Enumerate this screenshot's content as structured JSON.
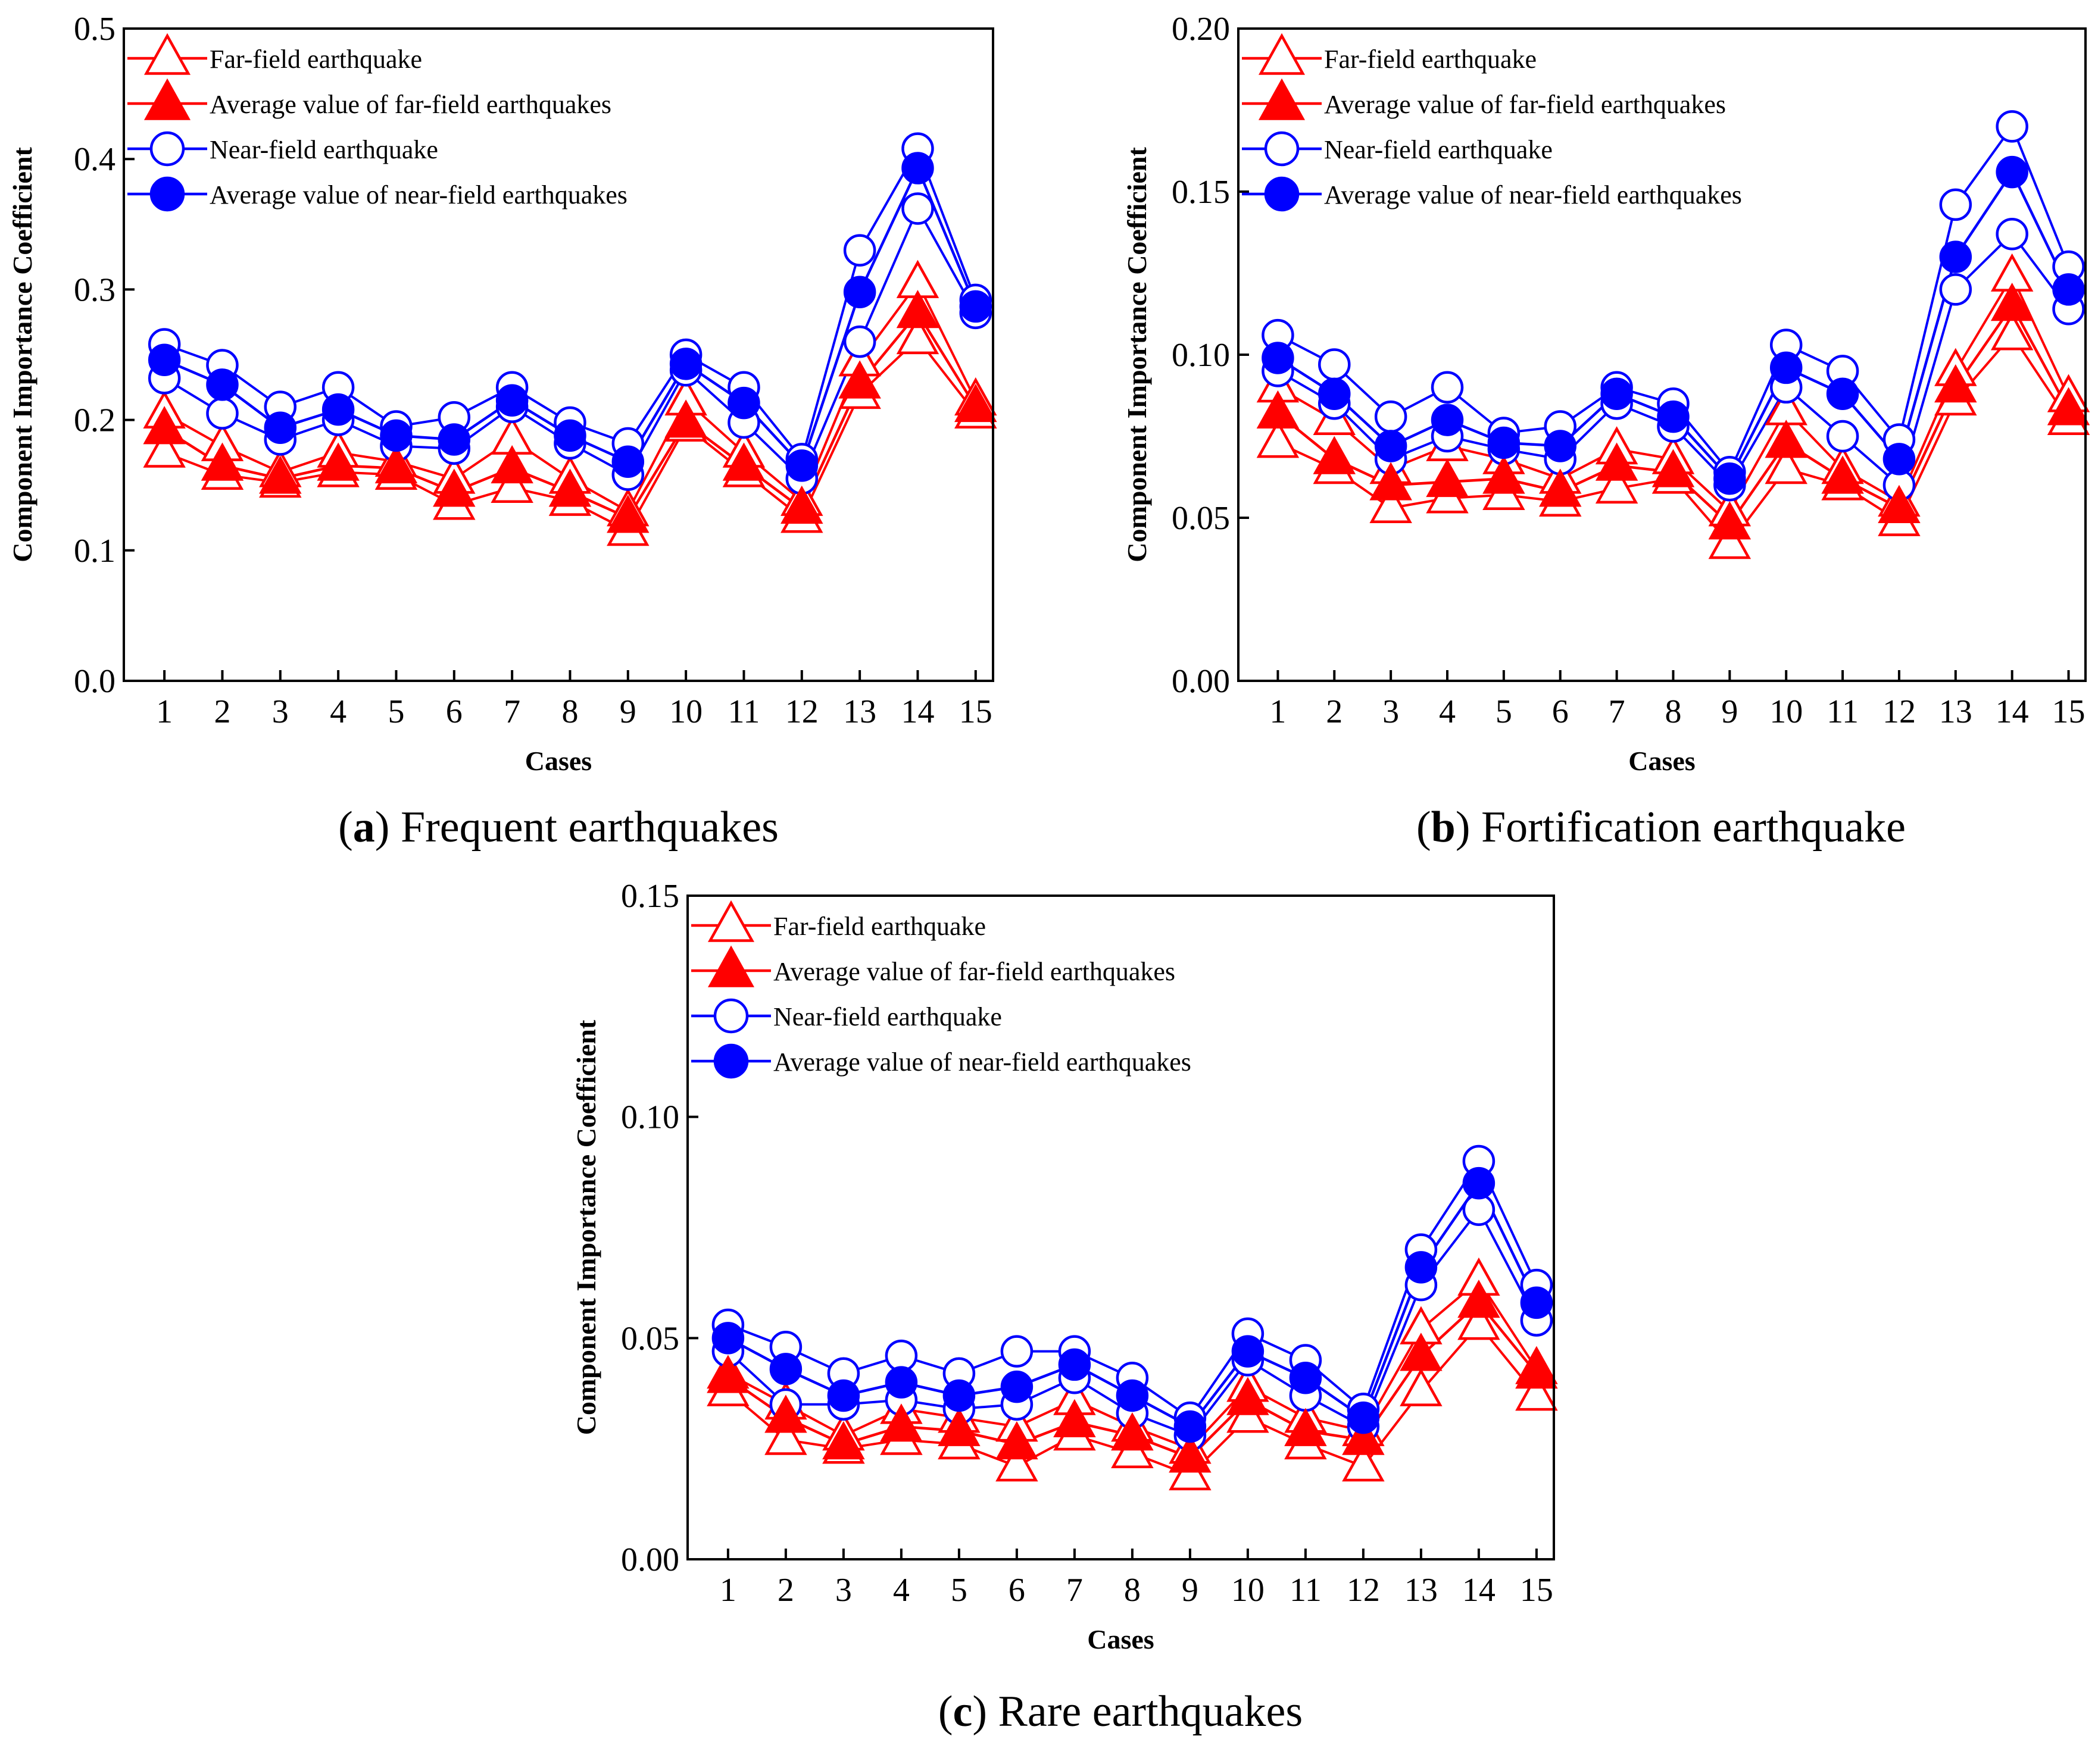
{
  "legend": [
    {
      "key": "far_ind",
      "label": "Far-field earthquake",
      "color": "#ff0000",
      "marker": "triangle-open"
    },
    {
      "key": "far_avg",
      "label": "Average value of far-field earthquakes",
      "color": "#ff0000",
      "marker": "triangle-filled"
    },
    {
      "key": "near_ind",
      "label": "Near-field earthquake",
      "color": "#0000ff",
      "marker": "circle-open"
    },
    {
      "key": "near_avg",
      "label": "Average value of near-field earthquakes",
      "color": "#0000ff",
      "marker": "circle-filled"
    }
  ],
  "chart_data": [
    {
      "type": "line",
      "caption_letter": "a",
      "caption_text": " Frequent earthquakes",
      "xlabel": "Cases",
      "ylabel": "Component Importance Coefficient",
      "x": [
        1,
        2,
        3,
        4,
        5,
        6,
        7,
        8,
        9,
        10,
        11,
        12,
        13,
        14,
        15
      ],
      "xlim": [
        0.3,
        15.3
      ],
      "ylim": [
        0,
        0.5
      ],
      "yticks": [
        "0.0",
        "0.1",
        "0.2",
        "0.3",
        "0.4",
        "0.5"
      ],
      "ytick_values": [
        0,
        0.1,
        0.2,
        0.3,
        0.4,
        0.5
      ],
      "grid": false,
      "legend_position": "top-left",
      "far_individual": [
        [
          0.175,
          0.158,
          0.152,
          0.16,
          0.158,
          0.135,
          0.148,
          0.138,
          0.115,
          0.195,
          0.16,
          0.125,
          0.22,
          0.262,
          0.205
        ],
        [
          0.205,
          0.18,
          0.16,
          0.175,
          0.168,
          0.155,
          0.185,
          0.155,
          0.13,
          0.215,
          0.175,
          0.138,
          0.245,
          0.305,
          0.215
        ]
      ],
      "far_average": [
        0.193,
        0.165,
        0.155,
        0.165,
        0.163,
        0.145,
        0.163,
        0.145,
        0.125,
        0.198,
        0.165,
        0.132,
        0.228,
        0.282,
        0.21
      ],
      "near_individual": [
        [
          0.232,
          0.205,
          0.185,
          0.2,
          0.18,
          0.178,
          0.21,
          0.182,
          0.158,
          0.238,
          0.198,
          0.155,
          0.26,
          0.362,
          0.282
        ],
        [
          0.258,
          0.242,
          0.21,
          0.225,
          0.195,
          0.202,
          0.225,
          0.198,
          0.182,
          0.25,
          0.225,
          0.17,
          0.33,
          0.408,
          0.292
        ]
      ],
      "near_average": [
        0.246,
        0.227,
        0.194,
        0.208,
        0.188,
        0.185,
        0.215,
        0.188,
        0.168,
        0.243,
        0.213,
        0.165,
        0.298,
        0.393,
        0.287
      ]
    },
    {
      "type": "line",
      "caption_letter": "b",
      "caption_text": " Fortification earthquake",
      "xlabel": "Cases",
      "ylabel": "Component Importance Coefficient",
      "x": [
        1,
        2,
        3,
        4,
        5,
        6,
        7,
        8,
        9,
        10,
        11,
        12,
        13,
        14,
        15
      ],
      "xlim": [
        0.3,
        15.3
      ],
      "ylim": [
        0,
        0.2
      ],
      "yticks": [
        "0.00",
        "0.05",
        "0.10",
        "0.15",
        "0.20"
      ],
      "ytick_values": [
        0,
        0.05,
        0.1,
        0.15,
        0.2
      ],
      "grid": false,
      "legend_position": "top-left",
      "far_individual": [
        [
          0.073,
          0.065,
          0.053,
          0.056,
          0.057,
          0.055,
          0.059,
          0.062,
          0.042,
          0.065,
          0.06,
          0.049,
          0.086,
          0.106,
          0.08
        ],
        [
          0.09,
          0.08,
          0.065,
          0.072,
          0.068,
          0.062,
          0.071,
          0.068,
          0.052,
          0.083,
          0.065,
          0.055,
          0.095,
          0.124,
          0.087
        ]
      ],
      "far_average": [
        0.082,
        0.068,
        0.06,
        0.061,
        0.062,
        0.058,
        0.066,
        0.064,
        0.048,
        0.073,
        0.062,
        0.053,
        0.09,
        0.115,
        0.083
      ],
      "near_individual": [
        [
          0.095,
          0.085,
          0.068,
          0.075,
          0.071,
          0.068,
          0.085,
          0.078,
          0.06,
          0.09,
          0.075,
          0.06,
          0.12,
          0.137,
          0.114
        ],
        [
          0.106,
          0.097,
          0.081,
          0.09,
          0.076,
          0.078,
          0.09,
          0.085,
          0.064,
          0.103,
          0.095,
          0.074,
          0.146,
          0.17,
          0.127
        ]
      ],
      "near_average": [
        0.099,
        0.088,
        0.072,
        0.08,
        0.073,
        0.072,
        0.088,
        0.081,
        0.062,
        0.096,
        0.088,
        0.068,
        0.13,
        0.156,
        0.12
      ]
    },
    {
      "type": "line",
      "caption_letter": "c",
      "caption_text": " Rare earthquakes",
      "xlabel": "Cases",
      "ylabel": "Component Importance Coefficient",
      "x": [
        1,
        2,
        3,
        4,
        5,
        6,
        7,
        8,
        9,
        10,
        11,
        12,
        13,
        14,
        15
      ],
      "xlim": [
        0.3,
        15.3
      ],
      "ylim": [
        0,
        0.15
      ],
      "yticks": [
        "0.00",
        "0.05",
        "0.10",
        "0.15"
      ],
      "ytick_values": [
        0,
        0.05,
        0.1,
        0.15
      ],
      "grid": false,
      "legend_position": "top-left",
      "far_individual": [
        [
          0.038,
          0.027,
          0.025,
          0.027,
          0.026,
          0.021,
          0.028,
          0.024,
          0.019,
          0.032,
          0.026,
          0.021,
          0.038,
          0.053,
          0.037
        ],
        [
          0.042,
          0.035,
          0.028,
          0.034,
          0.032,
          0.03,
          0.036,
          0.03,
          0.025,
          0.039,
          0.032,
          0.029,
          0.052,
          0.063,
          0.043
        ]
      ],
      "far_average": [
        0.041,
        0.032,
        0.026,
        0.03,
        0.029,
        0.026,
        0.031,
        0.028,
        0.023,
        0.036,
        0.029,
        0.027,
        0.046,
        0.058,
        0.042
      ],
      "near_individual": [
        [
          0.047,
          0.035,
          0.035,
          0.036,
          0.034,
          0.035,
          0.041,
          0.033,
          0.028,
          0.045,
          0.037,
          0.03,
          0.062,
          0.079,
          0.054
        ],
        [
          0.053,
          0.048,
          0.042,
          0.046,
          0.042,
          0.047,
          0.047,
          0.041,
          0.032,
          0.051,
          0.045,
          0.034,
          0.07,
          0.09,
          0.062
        ]
      ],
      "near_average": [
        0.05,
        0.043,
        0.037,
        0.04,
        0.037,
        0.039,
        0.044,
        0.037,
        0.03,
        0.047,
        0.041,
        0.032,
        0.066,
        0.085,
        0.058
      ]
    }
  ]
}
